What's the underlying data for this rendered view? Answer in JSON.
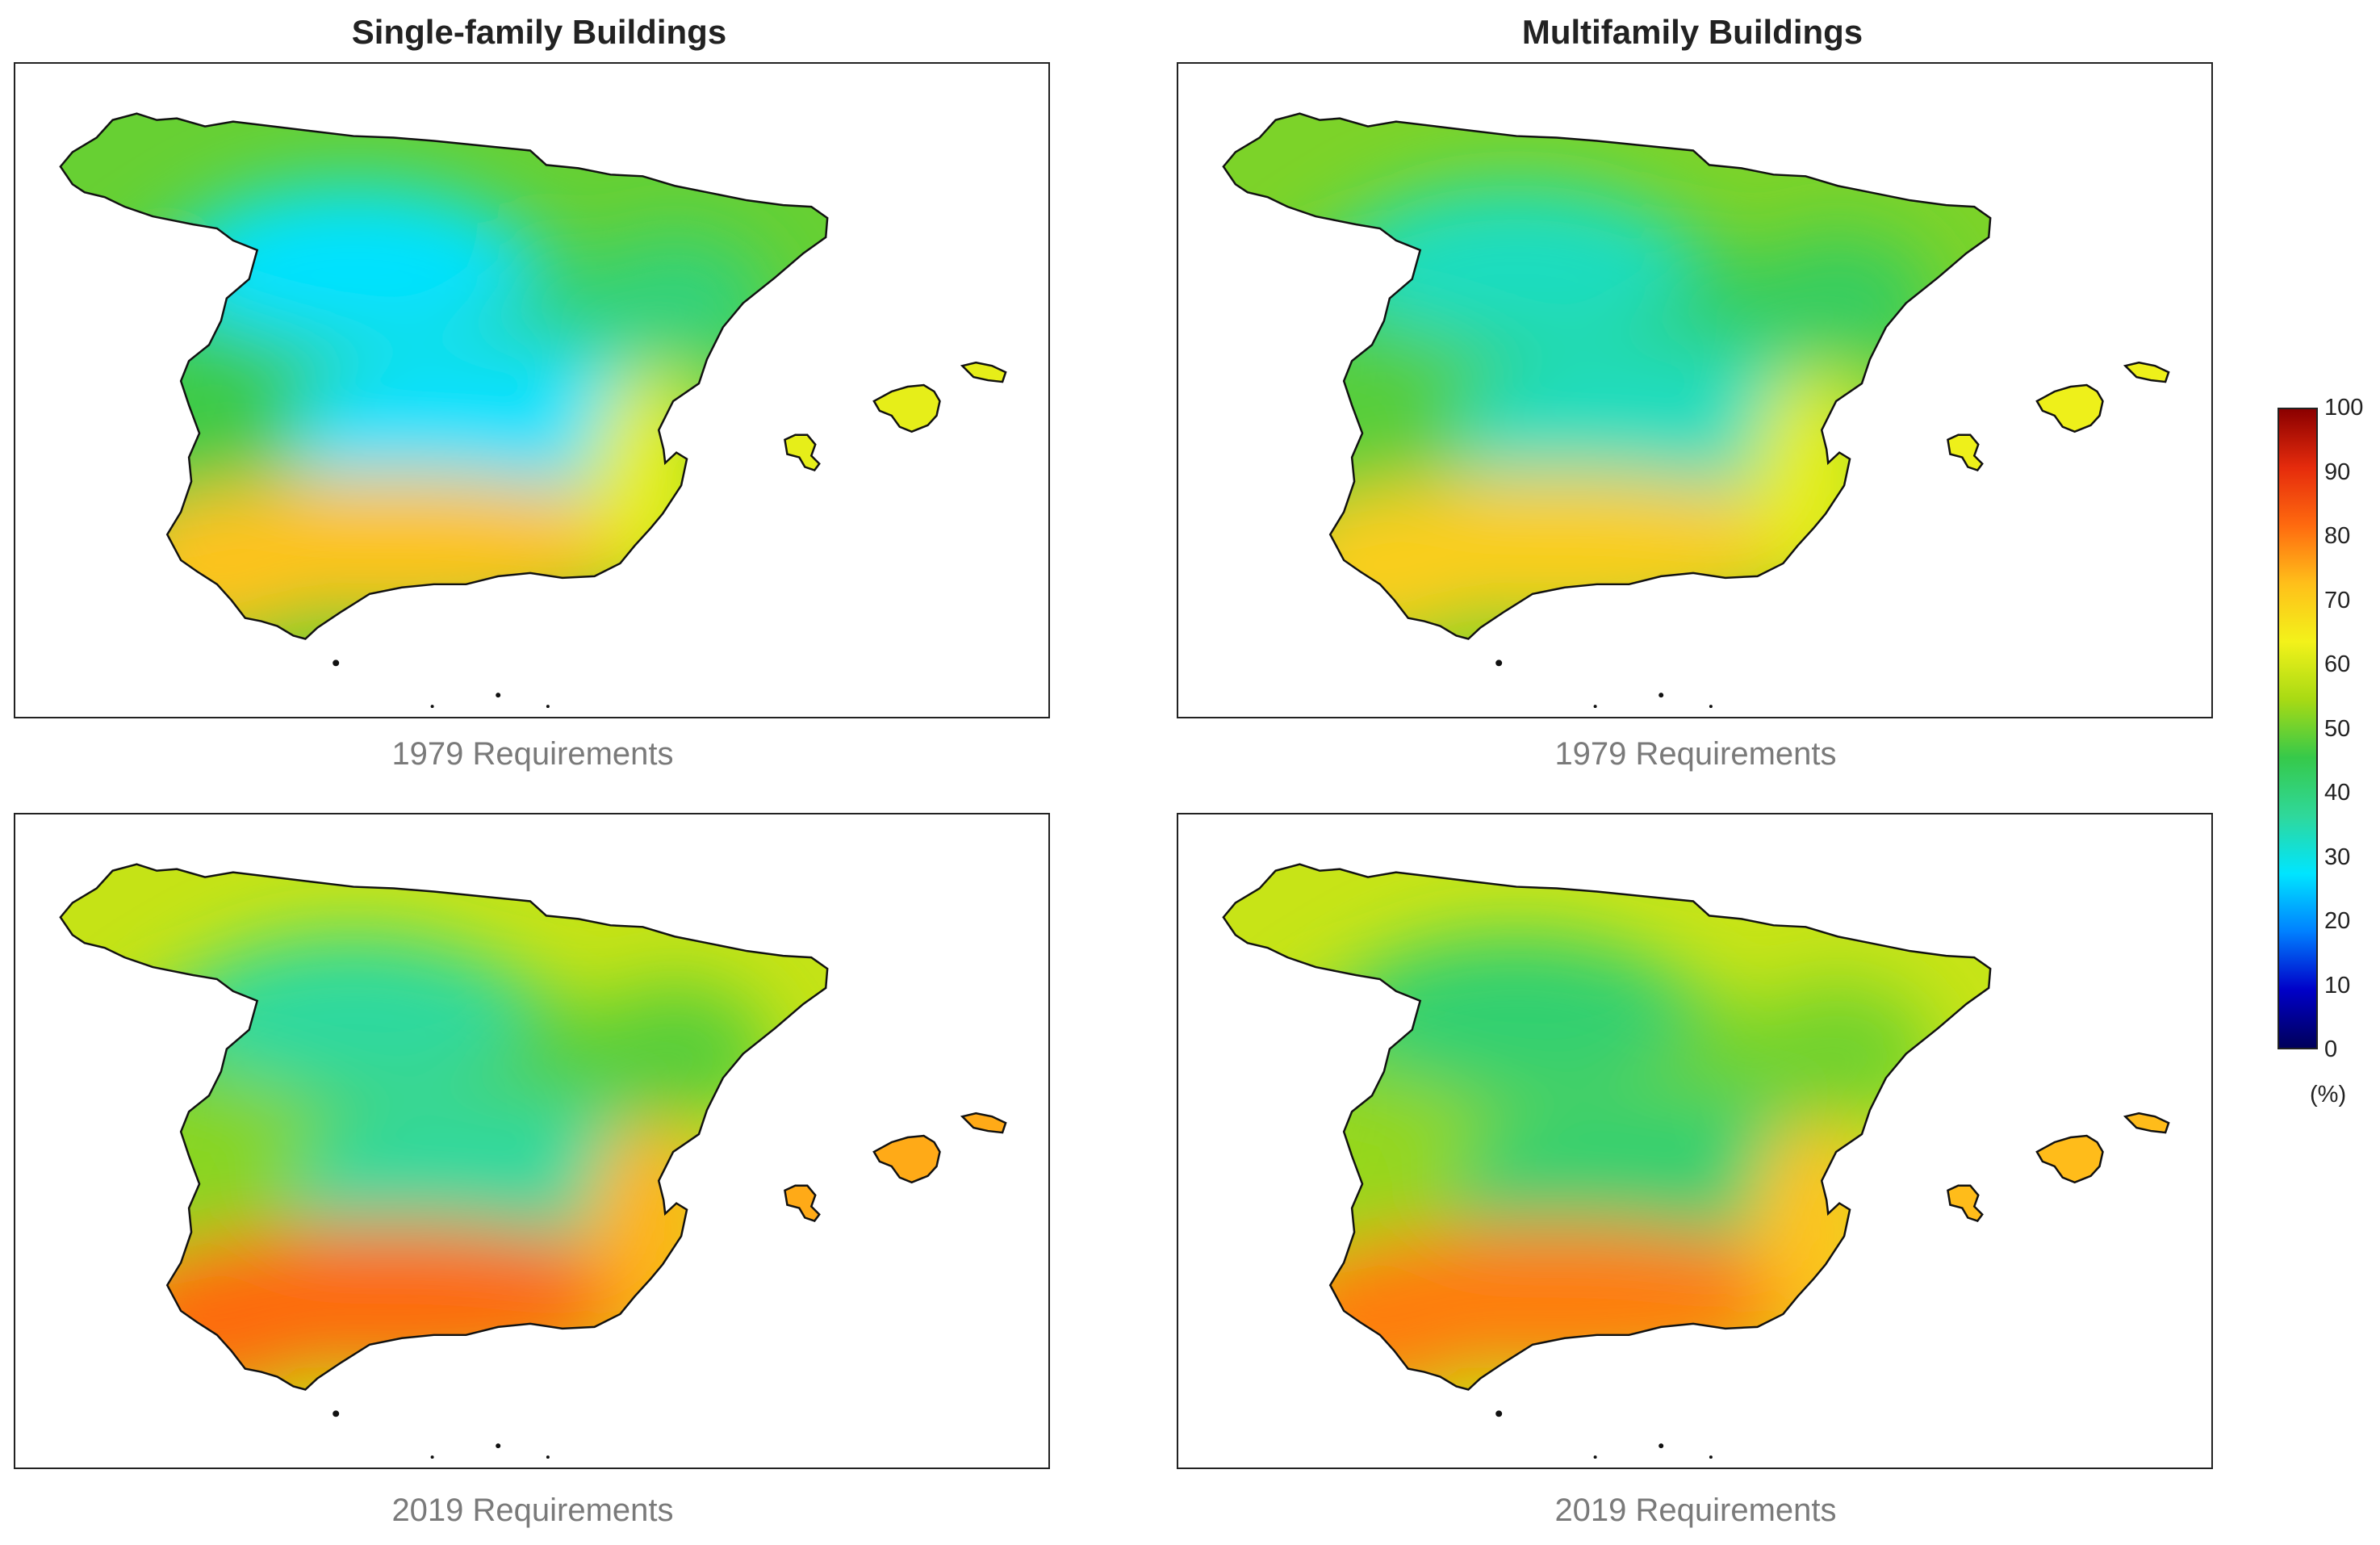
{
  "figure": {
    "columns": [
      {
        "title": "Single-family Buildings"
      },
      {
        "title": "Multifamily Buildings"
      }
    ],
    "panels": [
      {
        "building": "Single-family Buildings",
        "caption": "1979 Requirements",
        "north": 40,
        "center": 27,
        "west": 46,
        "south": 72,
        "east": 62,
        "islands": 62
      },
      {
        "building": "Multifamily Buildings",
        "caption": "1979 Requirements",
        "north": 43,
        "center": 33,
        "west": 48,
        "south": 70,
        "east": 62,
        "islands": 63
      },
      {
        "building": "Single-family Buildings",
        "caption": "2019 Requirements",
        "north": 48,
        "center": 36,
        "west": 52,
        "south": 82,
        "east": 74,
        "islands": 75
      },
      {
        "building": "Multifamily Buildings",
        "caption": "2019 Requirements",
        "north": 50,
        "center": 41,
        "west": 53,
        "south": 80,
        "east": 72,
        "islands": 73
      }
    ]
  },
  "colorbar": {
    "min": 0,
    "max": 100,
    "ticks": [
      "100",
      "90",
      "80",
      "70",
      "60",
      "50",
      "40",
      "30",
      "20",
      "10",
      "0"
    ],
    "unit": "(%)",
    "colors": [
      "#00005a",
      "#0000c8",
      "#0080ff",
      "#00e5ff",
      "#2fd89a",
      "#36c94a",
      "#a8da14",
      "#f3f21a",
      "#ffbf1a",
      "#ff6a0f",
      "#e52b0c",
      "#8b0000"
    ]
  }
}
